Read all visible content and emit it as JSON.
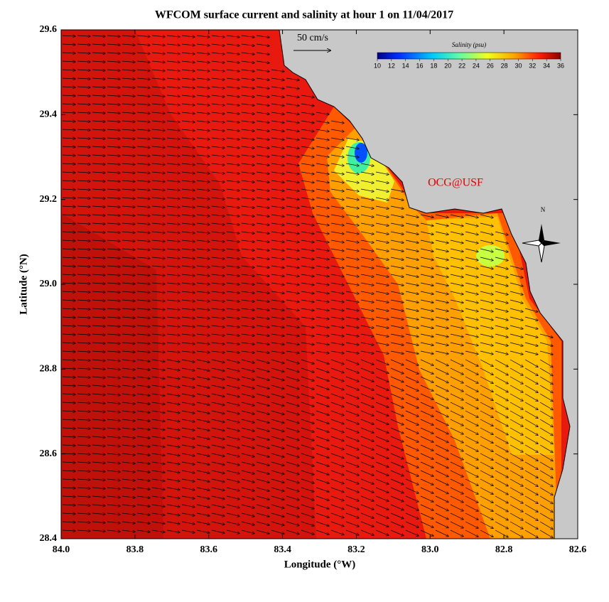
{
  "map": {
    "title": "WFCOM surface current and salinity at hour 1 on 11/04/2017",
    "xlabel": "Longitude (°W)",
    "ylabel": "Latitude (°N)",
    "xlim": [
      84.0,
      82.6
    ],
    "ylim": [
      28.4,
      29.6
    ],
    "xticks": [
      {
        "value": 84.0,
        "label": "84.0"
      },
      {
        "value": 83.8,
        "label": "83.8"
      },
      {
        "value": 83.6,
        "label": "83.6"
      },
      {
        "value": 83.4,
        "label": "83.4"
      },
      {
        "value": 83.2,
        "label": "83.2"
      },
      {
        "value": 83.0,
        "label": "83.0"
      },
      {
        "value": 82.8,
        "label": "82.8"
      },
      {
        "value": 82.6,
        "label": "82.6"
      }
    ],
    "yticks": [
      {
        "value": 28.4,
        "label": "28.4"
      },
      {
        "value": 28.6,
        "label": "28.6"
      },
      {
        "value": 28.8,
        "label": "28.8"
      },
      {
        "value": 29.0,
        "label": "29.0"
      },
      {
        "value": 29.2,
        "label": "29.2"
      },
      {
        "value": 29.4,
        "label": "29.4"
      },
      {
        "value": 29.6,
        "label": "29.6"
      }
    ],
    "scale_label": "50 cm/s",
    "credit": "OCG@USF",
    "north": "N",
    "colorbar": {
      "title": "Salinity (psu)",
      "lim": [
        10,
        36
      ],
      "ticks": [
        10,
        12,
        14,
        16,
        18,
        20,
        22,
        24,
        26,
        28,
        30,
        32,
        34,
        36
      ]
    }
  }
}
